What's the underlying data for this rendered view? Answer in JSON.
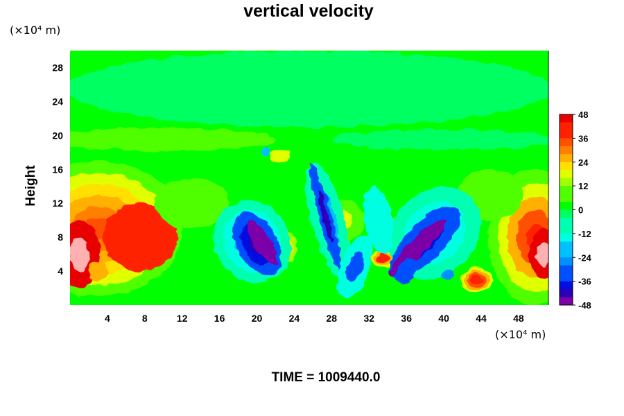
{
  "chart_data": {
    "type": "heatmap",
    "title": "vertical velocity",
    "ylabel": "Height",
    "xlabel": "",
    "x_unit": "(×10⁴ m)",
    "y_unit": "(×10⁴ m)",
    "x_ticks": [
      "4",
      "8",
      "12",
      "16",
      "20",
      "24",
      "28",
      "32",
      "36",
      "40",
      "44",
      "48"
    ],
    "x_tick_values": [
      4,
      8,
      12,
      16,
      20,
      24,
      28,
      32,
      36,
      40,
      44,
      48
    ],
    "y_ticks": [
      "4",
      "8",
      "12",
      "16",
      "20",
      "24",
      "28"
    ],
    "y_tick_values": [
      4,
      8,
      12,
      16,
      20,
      24,
      28
    ],
    "xlim": [
      0,
      51.2
    ],
    "ylim": [
      0,
      30
    ],
    "colorbar": {
      "labels": [
        "48",
        "36",
        "24",
        "12",
        "0",
        "-12",
        "-24",
        "-36",
        "-48"
      ],
      "min": -48,
      "max": 48,
      "step": 4
    },
    "features": [
      {
        "x": 1,
        "y": 6,
        "value": 48
      },
      {
        "x": 3,
        "y": 9,
        "value": 36
      },
      {
        "x": 7.5,
        "y": 8,
        "value": 40
      },
      {
        "x": 43.5,
        "y": 3,
        "value": 36
      },
      {
        "x": 50.5,
        "y": 6,
        "value": 48
      },
      {
        "x": 33.5,
        "y": 5.5,
        "value": 36
      },
      {
        "x": 20.5,
        "y": 7,
        "value": -48
      },
      {
        "x": 37.5,
        "y": 7,
        "value": -48
      },
      {
        "x": 27.5,
        "y": 10,
        "value": -40
      }
    ]
  },
  "footer": {
    "time_label": "TIME = 1009440.0"
  }
}
